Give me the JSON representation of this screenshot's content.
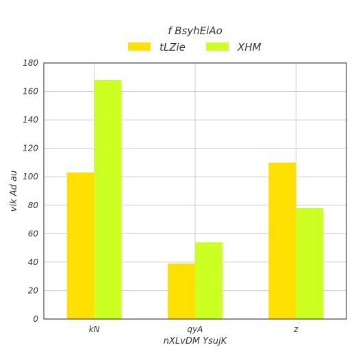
{
  "chart_data": {
    "type": "bar",
    "title": "f  BsyhEiAo",
    "xlabel": "nXLvDM YsujK",
    "ylabel": "vik  Ad au",
    "categories": [
      "kN",
      "qyA",
      "z"
    ],
    "series": [
      {
        "name": "tLZie",
        "color": "#ffe000",
        "values": [
          103,
          39,
          110
        ]
      },
      {
        "name": "XHM",
        "color": "#ccff22",
        "values": [
          168,
          54,
          78
        ]
      }
    ],
    "ylim": [
      0,
      180
    ],
    "yticks": [
      0,
      20,
      40,
      60,
      80,
      100,
      120,
      140,
      160,
      180
    ],
    "grid": true,
    "legend_position": "top-center"
  }
}
